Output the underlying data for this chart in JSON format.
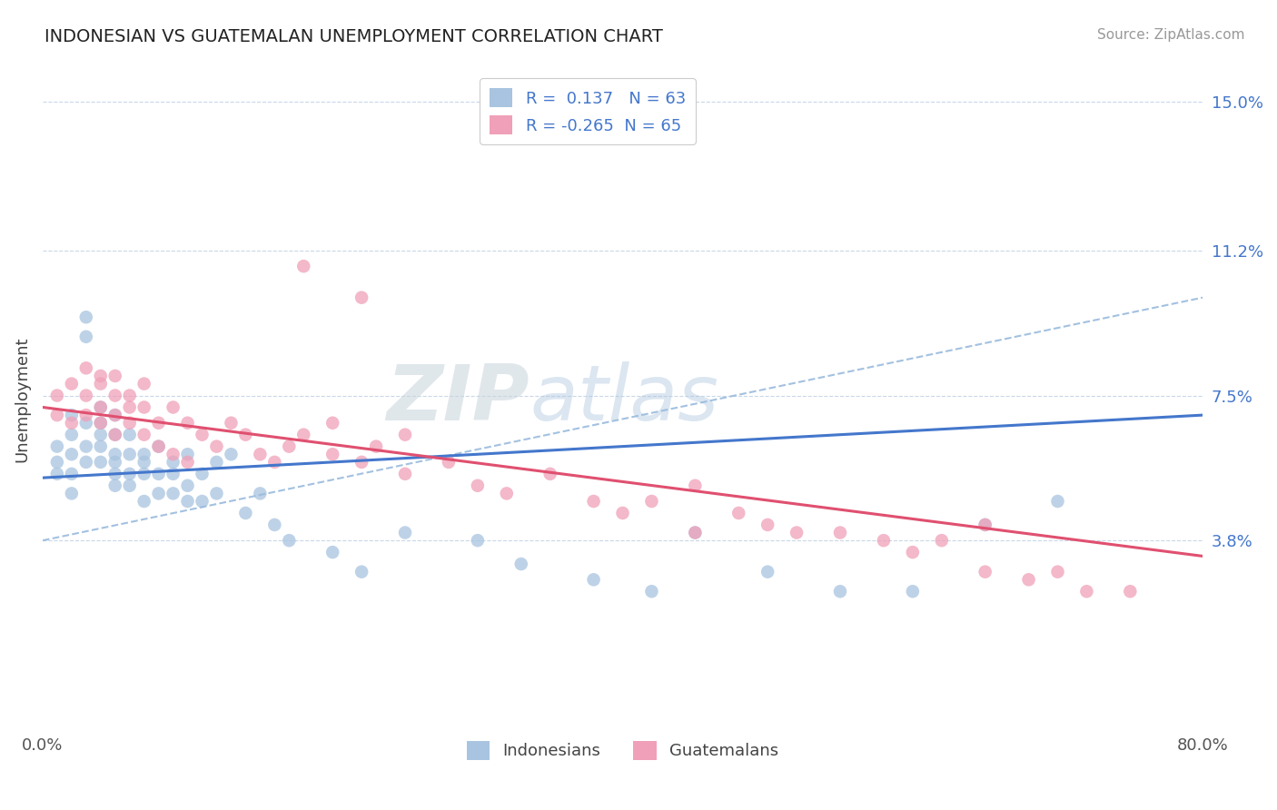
{
  "title": "INDONESIAN VS GUATEMALAN UNEMPLOYMENT CORRELATION CHART",
  "source": "Source: ZipAtlas.com",
  "ylabel": "Unemployment",
  "xlim": [
    0.0,
    0.8
  ],
  "ylim": [
    -0.01,
    0.158
  ],
  "yticks": [
    0.038,
    0.075,
    0.112,
    0.15
  ],
  "ytick_labels": [
    "3.8%",
    "7.5%",
    "11.2%",
    "15.0%"
  ],
  "xticks": [
    0.0,
    0.8
  ],
  "xtick_labels": [
    "0.0%",
    "80.0%"
  ],
  "grid_color": "#c8d8e8",
  "background_color": "#ffffff",
  "indonesian_color": "#a8c4e0",
  "guatemalan_color": "#f0a0b8",
  "indonesian_line_color": "#4477cc",
  "guatemalan_line_color": "#e05070",
  "dashed_line_color": "#99bbdd",
  "R_indonesian": 0.137,
  "N_indonesian": 63,
  "R_guatemalan": -0.265,
  "N_guatemalan": 65,
  "legend_label_1": "Indonesians",
  "legend_label_2": "Guatemalans",
  "watermark_zip": "ZIP",
  "watermark_atlas": "atlas",
  "indonesian_line": [
    0.0,
    0.8,
    0.054,
    0.07
  ],
  "guatemalan_line": [
    0.0,
    0.8,
    0.072,
    0.034
  ],
  "dashed_line": [
    0.0,
    0.8,
    0.038,
    0.1
  ],
  "indonesian_scatter_x": [
    0.01,
    0.01,
    0.01,
    0.02,
    0.02,
    0.02,
    0.02,
    0.02,
    0.03,
    0.03,
    0.03,
    0.03,
    0.03,
    0.04,
    0.04,
    0.04,
    0.04,
    0.04,
    0.05,
    0.05,
    0.05,
    0.05,
    0.05,
    0.05,
    0.06,
    0.06,
    0.06,
    0.06,
    0.07,
    0.07,
    0.07,
    0.07,
    0.08,
    0.08,
    0.08,
    0.09,
    0.09,
    0.09,
    0.1,
    0.1,
    0.1,
    0.11,
    0.11,
    0.12,
    0.12,
    0.13,
    0.14,
    0.15,
    0.16,
    0.17,
    0.2,
    0.22,
    0.25,
    0.3,
    0.33,
    0.38,
    0.42,
    0.45,
    0.5,
    0.55,
    0.6,
    0.65,
    0.7
  ],
  "indonesian_scatter_y": [
    0.062,
    0.058,
    0.055,
    0.07,
    0.065,
    0.06,
    0.055,
    0.05,
    0.068,
    0.062,
    0.058,
    0.095,
    0.09,
    0.065,
    0.062,
    0.058,
    0.072,
    0.068,
    0.06,
    0.058,
    0.055,
    0.052,
    0.065,
    0.07,
    0.055,
    0.06,
    0.052,
    0.065,
    0.055,
    0.06,
    0.048,
    0.058,
    0.05,
    0.055,
    0.062,
    0.05,
    0.055,
    0.058,
    0.048,
    0.052,
    0.06,
    0.048,
    0.055,
    0.05,
    0.058,
    0.06,
    0.045,
    0.05,
    0.042,
    0.038,
    0.035,
    0.03,
    0.04,
    0.038,
    0.032,
    0.028,
    0.025,
    0.04,
    0.03,
    0.025,
    0.025,
    0.042,
    0.048
  ],
  "guatemalan_scatter_x": [
    0.01,
    0.01,
    0.02,
    0.02,
    0.03,
    0.03,
    0.03,
    0.04,
    0.04,
    0.04,
    0.04,
    0.05,
    0.05,
    0.05,
    0.05,
    0.06,
    0.06,
    0.06,
    0.07,
    0.07,
    0.07,
    0.08,
    0.08,
    0.09,
    0.09,
    0.1,
    0.1,
    0.11,
    0.12,
    0.13,
    0.14,
    0.15,
    0.16,
    0.17,
    0.18,
    0.18,
    0.2,
    0.2,
    0.22,
    0.22,
    0.23,
    0.25,
    0.25,
    0.28,
    0.3,
    0.32,
    0.35,
    0.38,
    0.4,
    0.42,
    0.45,
    0.45,
    0.48,
    0.5,
    0.52,
    0.55,
    0.58,
    0.6,
    0.62,
    0.65,
    0.65,
    0.68,
    0.7,
    0.72,
    0.75
  ],
  "guatemalan_scatter_y": [
    0.07,
    0.075,
    0.068,
    0.078,
    0.075,
    0.082,
    0.07,
    0.078,
    0.072,
    0.08,
    0.068,
    0.075,
    0.08,
    0.07,
    0.065,
    0.072,
    0.068,
    0.075,
    0.078,
    0.065,
    0.072,
    0.068,
    0.062,
    0.072,
    0.06,
    0.068,
    0.058,
    0.065,
    0.062,
    0.068,
    0.065,
    0.06,
    0.058,
    0.062,
    0.065,
    0.108,
    0.06,
    0.068,
    0.058,
    0.1,
    0.062,
    0.065,
    0.055,
    0.058,
    0.052,
    0.05,
    0.055,
    0.048,
    0.045,
    0.048,
    0.04,
    0.052,
    0.045,
    0.042,
    0.04,
    0.04,
    0.038,
    0.035,
    0.038,
    0.03,
    0.042,
    0.028,
    0.03,
    0.025,
    0.025
  ]
}
